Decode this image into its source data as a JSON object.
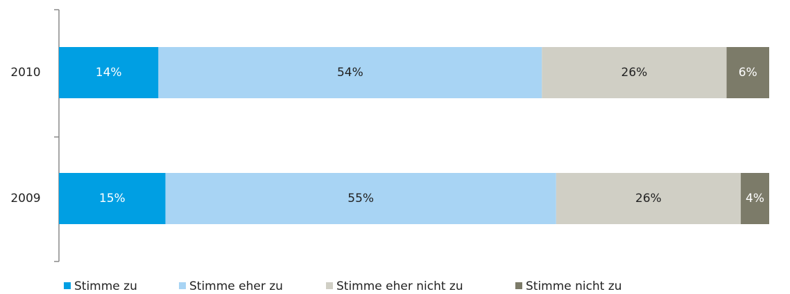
{
  "chart_data": {
    "type": "stacked-bar-horizontal",
    "categories": [
      "2010",
      "2009"
    ],
    "series": [
      {
        "name": "Stimme zu",
        "color": "#009fe3",
        "values": [
          14,
          15
        ],
        "value_labels": [
          "14%",
          "15%"
        ]
      },
      {
        "name": "Stimme eher zu",
        "color": "#a8d4f4",
        "values": [
          54,
          55
        ],
        "value_labels": [
          "54%",
          "55%"
        ]
      },
      {
        "name": "Stimme eher nicht zu",
        "color": "#d0cfc5",
        "values": [
          26,
          26
        ],
        "value_labels": [
          "26%",
          "26%"
        ]
      },
      {
        "name": "Stimme nicht zu",
        "color": "#7c7b69",
        "values": [
          6,
          4
        ],
        "value_labels": [
          "6%",
          "4%"
        ]
      }
    ],
    "legend": "bottom"
  }
}
